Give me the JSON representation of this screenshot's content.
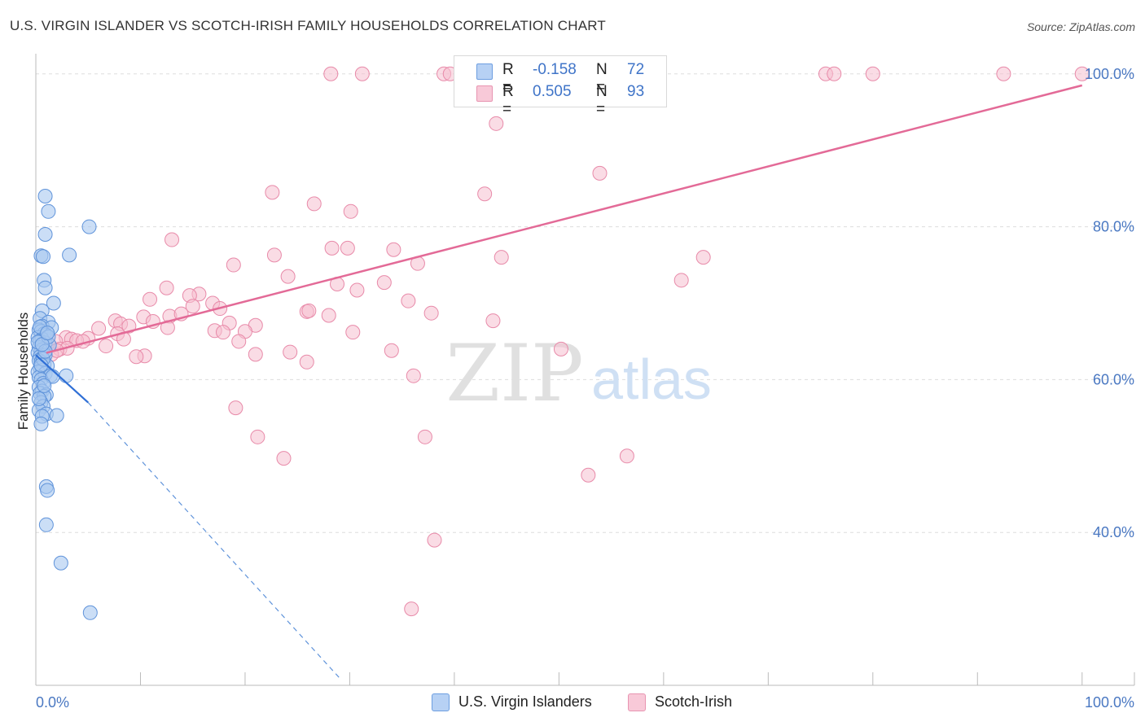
{
  "title": "U.S. VIRGIN ISLANDER VS SCOTCH-IRISH FAMILY HOUSEHOLDS CORRELATION CHART",
  "source": "Source: ZipAtlas.com",
  "watermark": {
    "zip": "ZIP",
    "atlas": "atlas"
  },
  "legend": {
    "r_label": "R =",
    "n_label": "N =",
    "series": [
      {
        "name": "U.S. Virgin Islanders",
        "r": "-0.158",
        "n": "72"
      },
      {
        "name": "Scotch-Irish",
        "r": "0.505",
        "n": "93"
      }
    ]
  },
  "colors": {
    "blue_fill": "#a9c8f0",
    "blue_stroke": "#5f93da",
    "blue_line": "#2f6fd6",
    "pink_fill": "#f6bfd0",
    "pink_stroke": "#e88aa9",
    "pink_line": "#e36a97",
    "grid": "#dddddd",
    "axis_text": "#4a78c2"
  },
  "chart_data": {
    "type": "scatter",
    "title": "U.S. VIRGIN ISLANDER VS SCOTCH-IRISH FAMILY HOUSEHOLDS CORRELATION CHART",
    "xlabel": "",
    "ylabel": "Family Households",
    "x_tick_labels": [
      "0.0%",
      "100.0%"
    ],
    "y_tick_labels": [
      "40.0%",
      "60.0%",
      "80.0%",
      "100.0%"
    ],
    "y_ticks": [
      40,
      60,
      80,
      100
    ],
    "xlim": [
      0,
      105
    ],
    "ylim": [
      20,
      102
    ],
    "grid": true,
    "legend_position": "top-center",
    "series": [
      {
        "name": "U.S. Virgin Islanders",
        "trend": {
          "x": [
            0,
            5
          ],
          "y": [
            63.2,
            57.0
          ],
          "dashed_to": [
            29,
            21
          ]
        },
        "points": [
          [
            0.9,
            84.0
          ],
          [
            1.2,
            82.0
          ],
          [
            5.1,
            80.0
          ],
          [
            0.9,
            79.0
          ],
          [
            0.5,
            76.2
          ],
          [
            3.2,
            76.3
          ],
          [
            0.7,
            76.1
          ],
          [
            0.8,
            73.0
          ],
          [
            0.9,
            72.0
          ],
          [
            1.7,
            70.0
          ],
          [
            0.6,
            69.0
          ],
          [
            0.4,
            68.0
          ],
          [
            1.2,
            67.5
          ],
          [
            0.6,
            67.0
          ],
          [
            1.5,
            66.8
          ],
          [
            0.3,
            66.5
          ],
          [
            0.5,
            66.3
          ],
          [
            0.8,
            66.0
          ],
          [
            1.0,
            65.8
          ],
          [
            0.2,
            65.5
          ],
          [
            0.6,
            65.3
          ],
          [
            0.4,
            65.0
          ],
          [
            0.9,
            64.8
          ],
          [
            1.3,
            64.5
          ],
          [
            0.3,
            64.2
          ],
          [
            0.7,
            64.0
          ],
          [
            0.5,
            63.8
          ],
          [
            0.2,
            63.5
          ],
          [
            0.9,
            63.2
          ],
          [
            0.4,
            63.0
          ],
          [
            0.6,
            62.8
          ],
          [
            0.3,
            62.5
          ],
          [
            0.5,
            62.3
          ],
          [
            0.8,
            62.0
          ],
          [
            1.1,
            61.8
          ],
          [
            0.4,
            61.5
          ],
          [
            0.6,
            61.2
          ],
          [
            0.2,
            61.0
          ],
          [
            0.9,
            60.8
          ],
          [
            1.4,
            60.5
          ],
          [
            0.3,
            60.3
          ],
          [
            2.9,
            60.5
          ],
          [
            0.5,
            60.0
          ],
          [
            0.7,
            59.5
          ],
          [
            0.3,
            59.0
          ],
          [
            0.6,
            58.5
          ],
          [
            0.4,
            58.2
          ],
          [
            1.0,
            58.0
          ],
          [
            0.8,
            57.8
          ],
          [
            0.5,
            57.0
          ],
          [
            0.7,
            56.5
          ],
          [
            0.3,
            56.0
          ],
          [
            1.0,
            55.5
          ],
          [
            0.6,
            55.2
          ],
          [
            2.0,
            55.3
          ],
          [
            0.5,
            54.2
          ],
          [
            1.0,
            46.0
          ],
          [
            1.1,
            45.5
          ],
          [
            1.0,
            41.0
          ],
          [
            2.4,
            36.0
          ],
          [
            5.2,
            29.5
          ],
          [
            0.2,
            64.9
          ],
          [
            0.4,
            66.9
          ],
          [
            1.2,
            65.6
          ],
          [
            0.7,
            62.7
          ],
          [
            0.5,
            61.9
          ],
          [
            1.6,
            60.4
          ],
          [
            0.8,
            59.2
          ],
          [
            0.3,
            57.5
          ],
          [
            0.9,
            63.7
          ],
          [
            0.6,
            64.6
          ],
          [
            1.1,
            66.1
          ]
        ]
      },
      {
        "name": "Scotch-Irish",
        "trend": {
          "x": [
            1,
            100
          ],
          "y": [
            63.5,
            98.5
          ]
        },
        "points": [
          [
            28.2,
            100
          ],
          [
            31.2,
            100
          ],
          [
            39.0,
            100
          ],
          [
            39.6,
            100
          ],
          [
            40.8,
            100
          ],
          [
            49.3,
            100
          ],
          [
            56.8,
            100
          ],
          [
            75.5,
            100
          ],
          [
            76.3,
            100
          ],
          [
            80.0,
            100
          ],
          [
            92.5,
            100
          ],
          [
            100.0,
            100
          ],
          [
            48.9,
            100
          ],
          [
            41.1,
            100
          ],
          [
            44.0,
            93.5
          ],
          [
            53.9,
            87.0
          ],
          [
            22.6,
            84.5
          ],
          [
            42.9,
            84.3
          ],
          [
            26.6,
            83.0
          ],
          [
            30.1,
            82.0
          ],
          [
            13.0,
            78.3
          ],
          [
            28.3,
            77.2
          ],
          [
            29.8,
            77.2
          ],
          [
            34.2,
            77.0
          ],
          [
            22.8,
            76.3
          ],
          [
            63.8,
            76.0
          ],
          [
            44.5,
            76.0
          ],
          [
            18.9,
            75.0
          ],
          [
            36.5,
            75.2
          ],
          [
            24.1,
            73.5
          ],
          [
            61.7,
            73.0
          ],
          [
            28.8,
            72.5
          ],
          [
            33.3,
            72.7
          ],
          [
            12.5,
            72.0
          ],
          [
            30.7,
            71.7
          ],
          [
            15.6,
            71.2
          ],
          [
            14.7,
            71.0
          ],
          [
            10.9,
            70.5
          ],
          [
            35.6,
            70.3
          ],
          [
            16.9,
            70.0
          ],
          [
            15.0,
            69.6
          ],
          [
            17.6,
            69.3
          ],
          [
            25.9,
            68.9
          ],
          [
            37.8,
            68.7
          ],
          [
            12.8,
            68.3
          ],
          [
            28.0,
            68.4
          ],
          [
            10.3,
            68.2
          ],
          [
            11.2,
            67.6
          ],
          [
            7.6,
            67.7
          ],
          [
            8.1,
            67.3
          ],
          [
            43.7,
            67.7
          ],
          [
            18.5,
            67.4
          ],
          [
            21.0,
            67.1
          ],
          [
            8.9,
            67.0
          ],
          [
            12.6,
            66.8
          ],
          [
            6.0,
            66.7
          ],
          [
            17.1,
            66.4
          ],
          [
            17.9,
            66.2
          ],
          [
            20.0,
            66.3
          ],
          [
            7.8,
            66.0
          ],
          [
            30.3,
            66.2
          ],
          [
            2.9,
            65.5
          ],
          [
            3.4,
            65.3
          ],
          [
            5.0,
            65.4
          ],
          [
            1.9,
            65.0
          ],
          [
            3.9,
            65.1
          ],
          [
            19.4,
            65.0
          ],
          [
            1.2,
            64.7
          ],
          [
            6.7,
            64.4
          ],
          [
            2.3,
            64.0
          ],
          [
            3.0,
            64.1
          ],
          [
            34.0,
            63.8
          ],
          [
            50.2,
            64.0
          ],
          [
            24.3,
            63.6
          ],
          [
            21.0,
            63.3
          ],
          [
            10.4,
            63.1
          ],
          [
            9.6,
            63.0
          ],
          [
            1.5,
            63.3
          ],
          [
            25.9,
            62.3
          ],
          [
            36.1,
            60.5
          ],
          [
            19.1,
            56.3
          ],
          [
            21.2,
            52.5
          ],
          [
            37.2,
            52.5
          ],
          [
            23.7,
            49.7
          ],
          [
            56.5,
            50.0
          ],
          [
            52.8,
            47.5
          ],
          [
            38.1,
            39.0
          ],
          [
            35.9,
            30.0
          ],
          [
            4.5,
            65.0
          ],
          [
            13.9,
            68.6
          ],
          [
            2.0,
            63.8
          ],
          [
            26.1,
            69.0
          ],
          [
            8.4,
            65.3
          ]
        ]
      }
    ]
  }
}
